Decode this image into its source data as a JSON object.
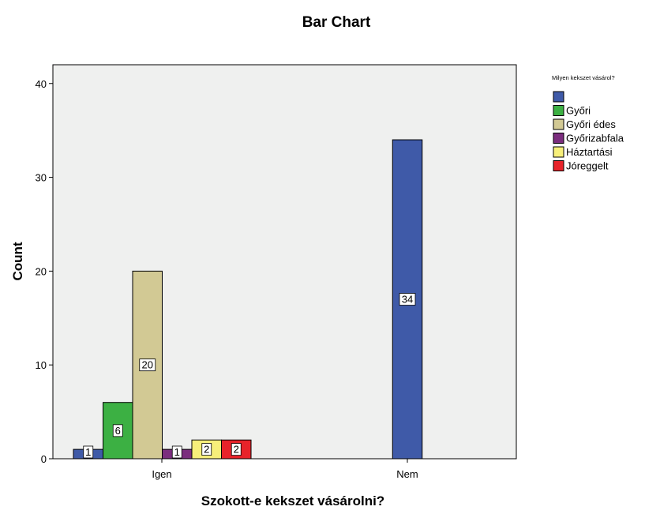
{
  "chart_data": {
    "type": "bar",
    "title": "Bar Chart",
    "xlabel": "Szokott-e kekszet vásárolni?",
    "ylabel": "Count",
    "categories": [
      "Igen",
      "Nem"
    ],
    "ylim": [
      0,
      42
    ],
    "yticks": [
      0,
      10,
      20,
      30,
      40
    ],
    "grid": false,
    "legend_title": "Milyen kekszet vásárol?",
    "legend_position": "top-right",
    "series": [
      {
        "name": "",
        "color": "#3f5aa8",
        "values": [
          1,
          34
        ]
      },
      {
        "name": "Győri",
        "color": "#3cb043",
        "values": [
          6,
          null
        ]
      },
      {
        "name": "Győri édes",
        "color": "#d2c994",
        "values": [
          20,
          null
        ]
      },
      {
        "name": "Győrizabfala",
        "color": "#7b2d7e",
        "values": [
          1,
          null
        ]
      },
      {
        "name": "Háztartási",
        "color": "#f7ef7a",
        "values": [
          2,
          null
        ]
      },
      {
        "name": "Jóreggelt",
        "color": "#e8232a",
        "values": [
          2,
          null
        ]
      }
    ],
    "plot_background": "#eff0ef"
  }
}
